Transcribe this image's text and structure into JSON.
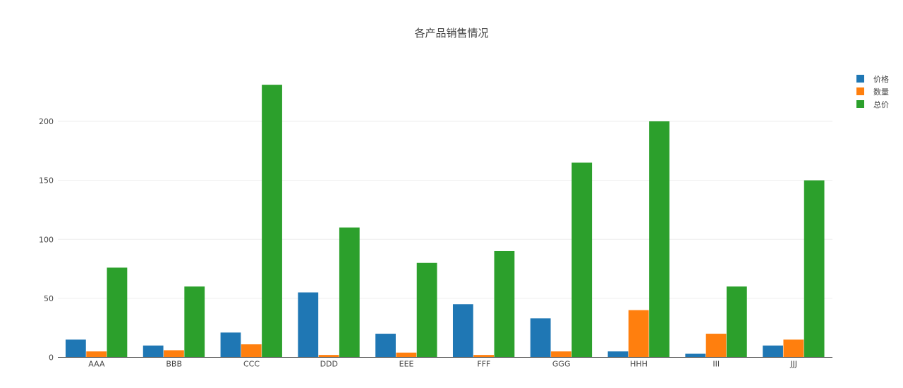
{
  "chart_data": {
    "type": "bar",
    "title": "各产品销售情况",
    "xlabel": "",
    "ylabel": "",
    "categories": [
      "AAA",
      "BBB",
      "CCC",
      "DDD",
      "EEE",
      "FFF",
      "GGG",
      "HHH",
      "III",
      "JJJ"
    ],
    "series": [
      {
        "name": "价格",
        "color": "#1f77b4",
        "values": [
          15,
          10,
          21,
          55,
          20,
          45,
          33,
          5,
          3,
          10
        ]
      },
      {
        "name": "数量",
        "color": "#ff7f0e",
        "values": [
          5,
          6,
          11,
          2,
          4,
          2,
          5,
          40,
          20,
          15
        ]
      },
      {
        "name": "总价",
        "color": "#2ca02c",
        "values": [
          76,
          60,
          231,
          110,
          80,
          90,
          165,
          200,
          60,
          150
        ]
      }
    ],
    "ylim": [
      0,
      240
    ],
    "yticks": [
      0,
      50,
      100,
      150,
      200
    ],
    "grid": true,
    "legend_position": "top-right"
  }
}
